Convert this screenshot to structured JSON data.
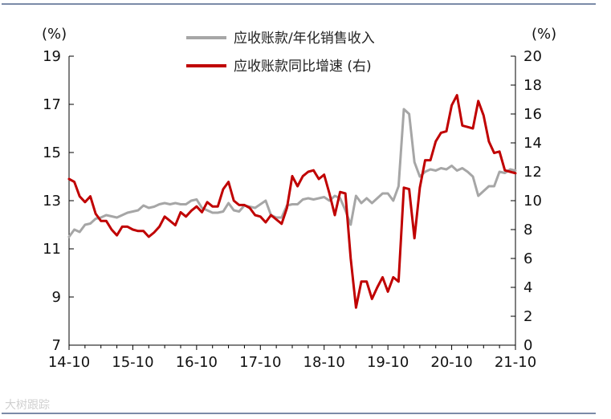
{
  "watermark": "大树跟踪",
  "chart_data": {
    "type": "line",
    "left_axis": {
      "unit_label": "(%)",
      "ylim": [
        7,
        19
      ],
      "ticks": [
        7,
        9,
        11,
        13,
        15,
        17,
        19
      ]
    },
    "right_axis": {
      "unit_label": "(%)",
      "ylim": [
        0,
        20
      ],
      "ticks": [
        0,
        2,
        4,
        6,
        8,
        10,
        12,
        14,
        16,
        18,
        20
      ]
    },
    "x_ticks": [
      "14-10",
      "15-10",
      "16-10",
      "17-10",
      "18-10",
      "19-10",
      "20-10",
      "21-10"
    ],
    "x_range": [
      0,
      84
    ],
    "colors": {
      "series1": "#a6a6a6",
      "series2": "#c00000"
    },
    "series": [
      {
        "name": "应收账款/年化销售收入",
        "axis": "left",
        "x": [
          0,
          1,
          2,
          3,
          4,
          5,
          6,
          7,
          8,
          9,
          10,
          11,
          12,
          13,
          14,
          15,
          16,
          17,
          18,
          19,
          20,
          21,
          22,
          23,
          24,
          25,
          26,
          27,
          28,
          29,
          30,
          31,
          32,
          33,
          34,
          35,
          36,
          37,
          38,
          39,
          40,
          41,
          42,
          43,
          44,
          45,
          46,
          47,
          48,
          49,
          50,
          51,
          52,
          53,
          54,
          55,
          56,
          57,
          58,
          59,
          60,
          61,
          62,
          63,
          64,
          65,
          66,
          67,
          68,
          69,
          70,
          71,
          72,
          73,
          74,
          75,
          76,
          77,
          78,
          79,
          80,
          81,
          82,
          83,
          84
        ],
        "values": [
          11.5,
          11.8,
          11.7,
          12.0,
          12.05,
          12.25,
          12.3,
          12.4,
          12.35,
          12.3,
          12.4,
          12.5,
          12.55,
          12.6,
          12.8,
          12.7,
          12.75,
          12.85,
          12.9,
          12.85,
          12.9,
          12.85,
          12.85,
          13.0,
          13.05,
          12.7,
          12.6,
          12.5,
          12.5,
          12.55,
          12.9,
          12.6,
          12.55,
          12.8,
          12.75,
          12.7,
          12.85,
          13.0,
          12.4,
          12.3,
          12.3,
          12.8,
          12.85,
          12.85,
          13.05,
          13.1,
          13.05,
          13.1,
          13.15,
          13.0,
          13.2,
          13.1,
          12.6,
          12.0,
          13.2,
          12.9,
          13.1,
          12.9,
          13.1,
          13.3,
          13.3,
          13.0,
          13.6,
          16.8,
          16.6,
          14.6,
          14.0,
          14.2,
          14.3,
          14.25,
          14.35,
          14.3,
          14.45,
          14.25,
          14.35,
          14.2,
          14.0,
          13.2,
          13.4,
          13.6,
          13.6,
          14.2,
          14.15,
          14.3,
          14.25
        ]
      },
      {
        "name": "应收账款同比增速 (右)",
        "axis": "right",
        "x": [
          0,
          1,
          2,
          3,
          4,
          5,
          6,
          7,
          8,
          9,
          10,
          11,
          12,
          13,
          14,
          15,
          16,
          17,
          18,
          19,
          20,
          21,
          22,
          23,
          24,
          25,
          26,
          27,
          28,
          29,
          30,
          31,
          32,
          33,
          34,
          35,
          36,
          37,
          38,
          39,
          40,
          41,
          42,
          43,
          44,
          45,
          46,
          47,
          48,
          49,
          50,
          51,
          52,
          53,
          54,
          55,
          56,
          57,
          58,
          59,
          60,
          61,
          62,
          63,
          64,
          65,
          66,
          67,
          68,
          69,
          70,
          71,
          72,
          73,
          74,
          75,
          76,
          77,
          78,
          79,
          80,
          81,
          82,
          83,
          84
        ],
        "values": [
          11.5,
          11.3,
          10.3,
          9.9,
          10.3,
          9.1,
          8.6,
          8.6,
          8.0,
          7.6,
          8.2,
          8.2,
          8.0,
          7.9,
          7.9,
          7.5,
          7.8,
          8.2,
          8.9,
          8.6,
          8.3,
          9.2,
          8.9,
          9.3,
          9.6,
          9.2,
          9.9,
          9.6,
          9.6,
          10.8,
          11.3,
          10.0,
          9.7,
          9.7,
          9.5,
          9.0,
          8.9,
          8.5,
          9.0,
          8.7,
          8.4,
          9.5,
          11.7,
          11.0,
          11.7,
          12.0,
          12.1,
          11.5,
          11.8,
          10.5,
          9.0,
          10.6,
          10.5,
          6.0,
          2.6,
          4.4,
          4.4,
          3.2,
          4.0,
          4.7,
          3.7,
          4.7,
          4.4,
          10.9,
          10.8,
          7.4,
          10.9,
          12.8,
          12.8,
          14.1,
          14.7,
          14.8,
          16.6,
          17.3,
          15.2,
          15.1,
          15.0,
          16.9,
          15.9,
          14.1,
          13.3,
          13.4,
          12.1,
          12.0,
          11.9
        ]
      }
    ]
  }
}
